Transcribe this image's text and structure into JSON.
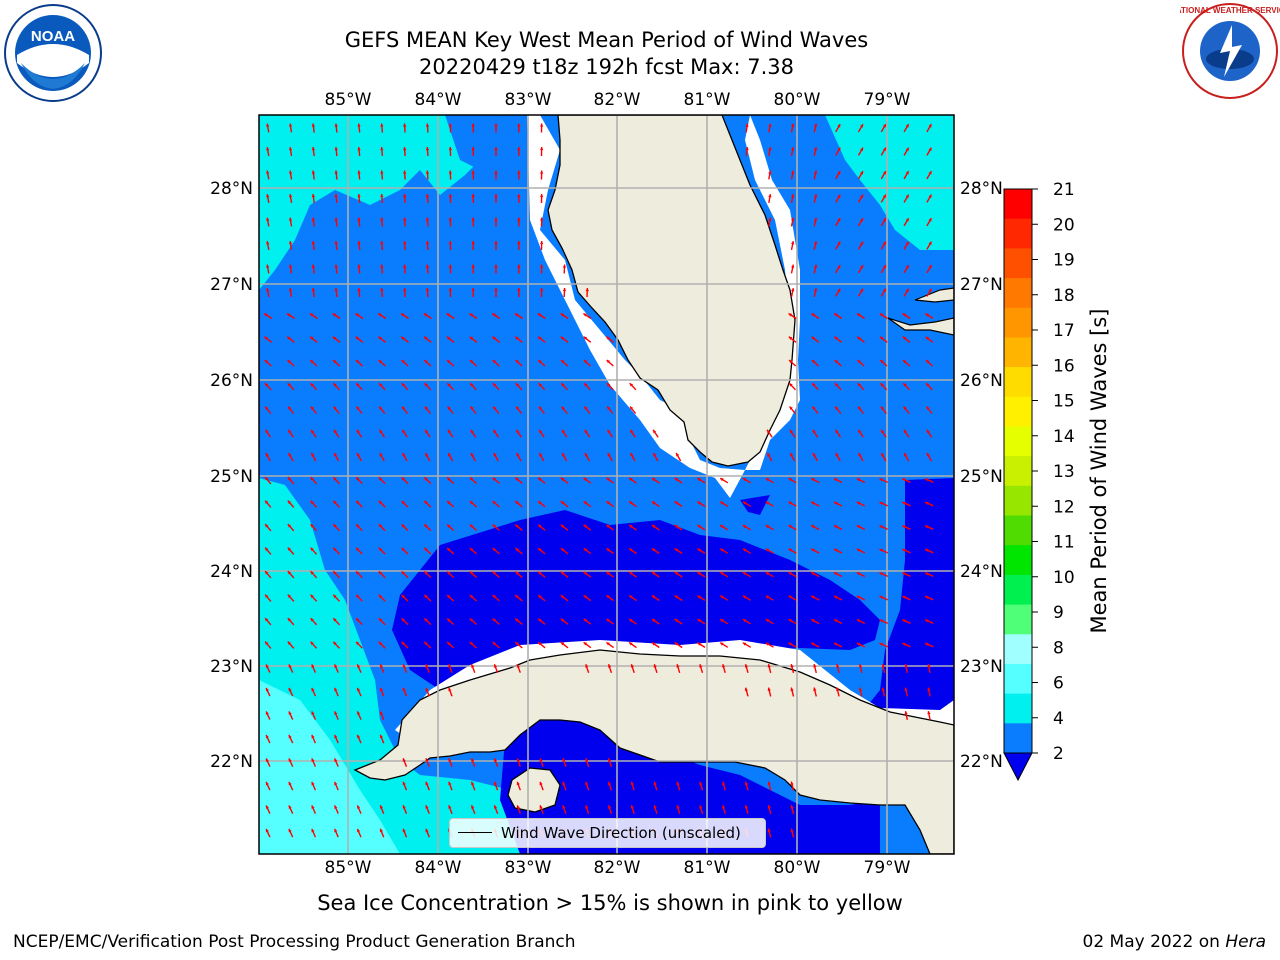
{
  "header": {
    "title_line1": "GEFS MEAN Key West Mean Period of Wind Waves",
    "title_line2": "20220429 t18z 192h fcst   Max: 7.38"
  },
  "logos": {
    "left": {
      "name": "noaa-logo",
      "text": "NOAA"
    },
    "right": {
      "name": "nws-logo",
      "text": "NATIONAL WEATHER SERVICE"
    }
  },
  "map": {
    "lon_labels": [
      "85°W",
      "84°W",
      "83°W",
      "82°W",
      "81°W",
      "80°W",
      "79°W"
    ],
    "lat_labels": [
      "28°N",
      "27°N",
      "26°N",
      "25°N",
      "24°N",
      "23°N",
      "22°N"
    ],
    "legend": "Wind Wave Direction (unscaled)",
    "colors": {
      "band_2_4": "#0a7dff",
      "band_below_2": "#0000ee",
      "band_4_6": "#00f0f0",
      "band_6_8": "#55ffff",
      "land": "#eeecdc",
      "arrow": "#ff0000",
      "grid": "#b0b0b0"
    }
  },
  "colorbar": {
    "label": "Mean Period of Wind Waves [s]",
    "ticks": [
      "21",
      "20",
      "19",
      "18",
      "17",
      "16",
      "15",
      "14",
      "13",
      "12",
      "11",
      "10",
      "9",
      "8",
      "6",
      "4",
      "2"
    ],
    "colors": [
      "#ff0000",
      "#ff2800",
      "#ff5000",
      "#ff7800",
      "#ff9600",
      "#ffb400",
      "#ffdc00",
      "#fff000",
      "#e6ff00",
      "#c8f000",
      "#96e600",
      "#50dc00",
      "#00e600",
      "#00f050",
      "#50ff78",
      "#a0ffff",
      "#55ffff",
      "#00f0f0",
      "#0a7dff"
    ]
  },
  "caption": "Sea Ice Concentration > 15% is shown in pink to yellow",
  "footer": {
    "left": "NCEP/EMC/Verification Post Processing Product Generation Branch",
    "right_date": "02 May 2022 on ",
    "right_host": "Hera"
  }
}
